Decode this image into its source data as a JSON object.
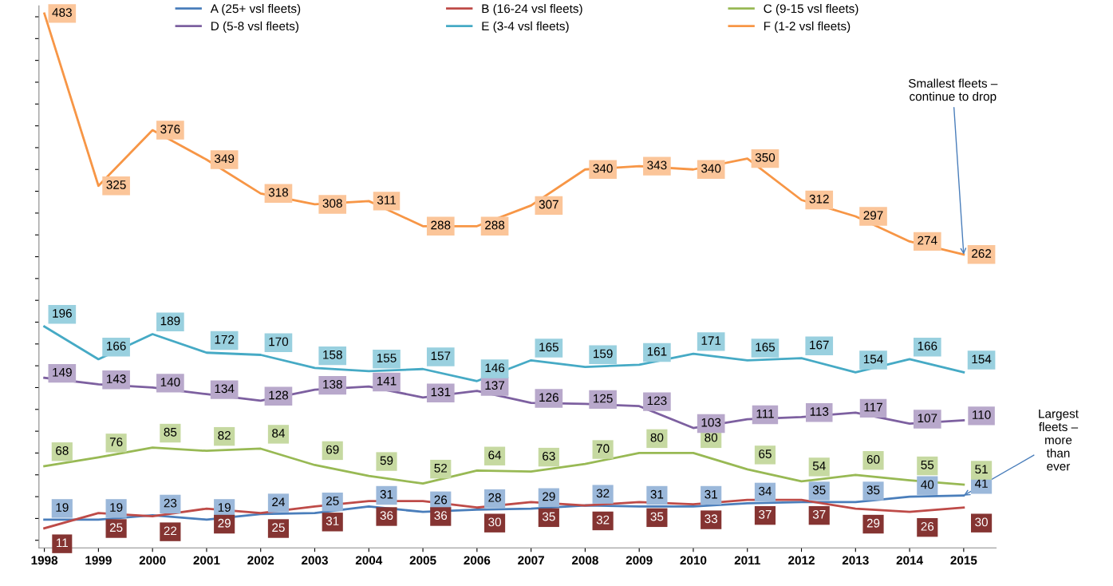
{
  "chart_data": {
    "type": "line",
    "categories": [
      "1998",
      "1999",
      "2000",
      "2001",
      "2002",
      "2003",
      "2004",
      "2005",
      "2006",
      "2007",
      "2008",
      "2009",
      "2010",
      "2011",
      "2012",
      "2013",
      "2014",
      "2015"
    ],
    "series": [
      {
        "name": "A (25+ vsl fleets)",
        "color": "#4a7ebb",
        "values": [
          19,
          19,
          23,
          19,
          24,
          25,
          31,
          26,
          28,
          29,
          32,
          31,
          31,
          34,
          35,
          35,
          40,
          41
        ]
      },
      {
        "name": "B (16-24 vsl fleets)",
        "color": "#be4b48",
        "values": [
          11,
          25,
          22,
          29,
          25,
          31,
          36,
          36,
          30,
          35,
          32,
          35,
          33,
          37,
          37,
          29,
          26,
          30
        ]
      },
      {
        "name": "C (9-15 vsl fleets)",
        "color": "#98b954",
        "values": [
          68,
          76,
          85,
          82,
          84,
          69,
          59,
          52,
          64,
          63,
          70,
          80,
          80,
          65,
          54,
          60,
          55,
          51
        ]
      },
      {
        "name": "D (5-8 vsl fleets)",
        "color": "#7d60a0",
        "values": [
          149,
          143,
          140,
          134,
          128,
          138,
          141,
          131,
          137,
          126,
          125,
          123,
          103,
          111,
          113,
          117,
          107,
          110
        ]
      },
      {
        "name": "E (3-4 vsl fleets)",
        "color": "#46aac5",
        "values": [
          196,
          166,
          189,
          172,
          170,
          158,
          155,
          157,
          146,
          165,
          159,
          161,
          171,
          165,
          167,
          154,
          166,
          154
        ]
      },
      {
        "name": "F (1-2 vsl fleets)",
        "color": "#f79646",
        "values": [
          483,
          325,
          376,
          349,
          318,
          308,
          311,
          288,
          288,
          307,
          340,
          343,
          340,
          350,
          312,
          297,
          274,
          262
        ]
      }
    ],
    "ylim": [
      -7,
      490
    ],
    "tick_labels": "x",
    "data_labels": true,
    "legend": "top",
    "marker": "none",
    "line_style": "solid",
    "grid": false,
    "annotations": [
      {
        "text": "Smallest fleets –\ncontinue to drop",
        "x": "2015",
        "y": 262
      },
      {
        "text": "Largest\nfleets –\nmore\nthan\never",
        "x": "2015",
        "y": 41
      }
    ]
  }
}
